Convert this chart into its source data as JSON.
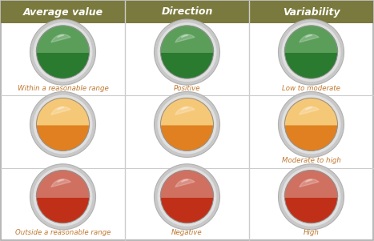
{
  "columns": [
    "Average value",
    "Direction",
    "Variability"
  ],
  "header_bg": "#7b7a3e",
  "header_text_color": "#ffffff",
  "bg_color": "#ffffff",
  "border_color": "#aaaaaa",
  "divider_color": "#cccccc",
  "rows": [
    {
      "labels": [
        "Within a reasonable range",
        "Positive",
        "Low to moderate"
      ],
      "label_color": "#c07830",
      "top_color": "#5a9e5a",
      "bottom_color": "#2a7a30",
      "ring_outer": "#c8c8c8",
      "ring_inner": "#e0e0e0"
    },
    {
      "labels": [
        "",
        "",
        "Moderate to high"
      ],
      "label_color": "#c07830",
      "top_color": "#f5c878",
      "bottom_color": "#e08020",
      "ring_outer": "#c8c8c8",
      "ring_inner": "#e0e0e0"
    },
    {
      "labels": [
        "Outside a reasonable range",
        "Negative",
        "High"
      ],
      "label_color": "#c07830",
      "top_color": "#d07060",
      "bottom_color": "#c03018",
      "ring_outer": "#c8c8c8",
      "ring_inner": "#e0e0e0"
    }
  ],
  "figsize": [
    4.67,
    3.01
  ],
  "dpi": 100
}
